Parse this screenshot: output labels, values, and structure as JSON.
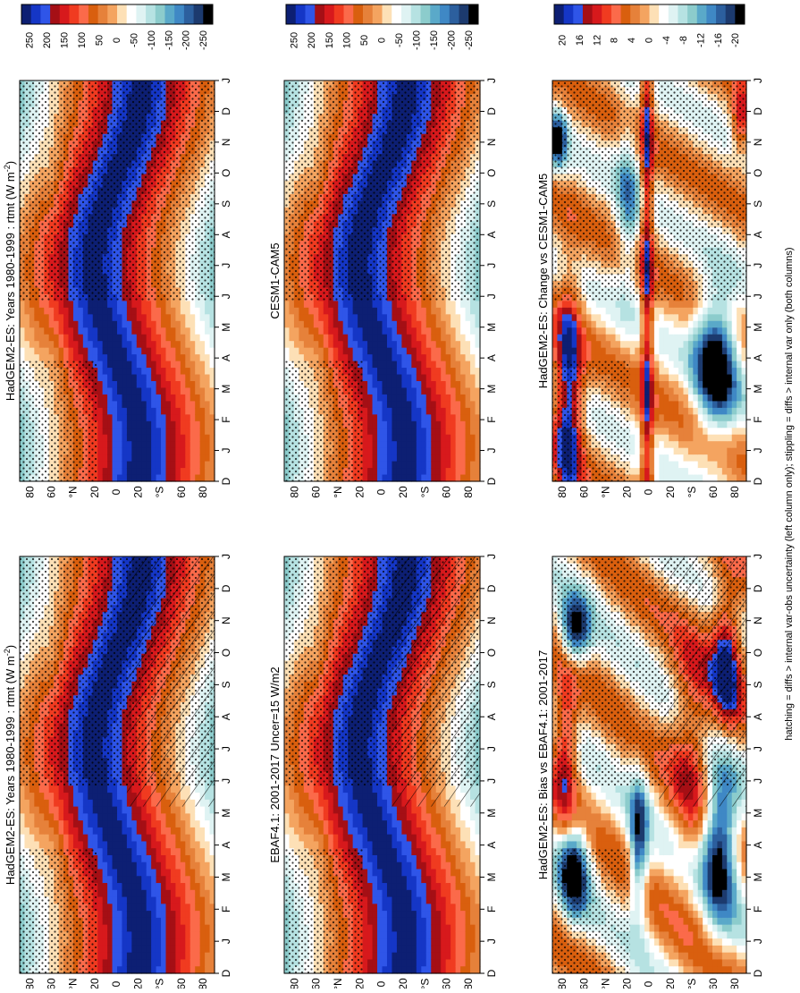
{
  "figure": {
    "footnote": "hatching = diffs > internal var-obs uncertainty (left column only); stippling = diffs > internal var only (both columns)"
  },
  "palettes": {
    "field": [
      "#0d1f73",
      "#1536c6",
      "#2f55e8",
      "#a50f15",
      "#d7191c",
      "#f03b20",
      "#fb6a4a",
      "#d95f0e",
      "#e6813a",
      "#f4a460",
      "#fde0b6",
      "#ffffff",
      "#dff3f3",
      "#b6e2e2",
      "#8ccccc",
      "#5aa9c9",
      "#3f88c5",
      "#2c5f9e",
      "#1c3a6e",
      "#000000"
    ],
    "diff": [
      "#0d1f73",
      "#1536c6",
      "#2f55e8",
      "#a50f15",
      "#d7191c",
      "#f03b20",
      "#fb6a4a",
      "#d95f0e",
      "#e6813a",
      "#f4a460",
      "#fde0b6",
      "#ffffff",
      "#dff3f3",
      "#b6e2e2",
      "#8ccccc",
      "#5aa9c9",
      "#3f88c5",
      "#2c5f9e",
      "#1c3a6e",
      "#000000"
    ]
  },
  "colorbars": {
    "field": [
      "250",
      "200",
      "150",
      "100",
      "50",
      "0",
      "-50",
      "-100",
      "-150",
      "-200",
      "-250"
    ],
    "diff": [
      "20",
      "16",
      "12",
      "8",
      "4",
      "0",
      "-4",
      "-8",
      "-12",
      "-16",
      "-20"
    ]
  },
  "axes": {
    "months": [
      "D",
      "J",
      "F",
      "M",
      "A",
      "M",
      "J",
      "J",
      "A",
      "S",
      "O",
      "N",
      "D",
      "J"
    ],
    "lat_ticks": [
      "80",
      "60",
      "°N",
      "20",
      "0",
      "20",
      "°S",
      "60",
      "80"
    ]
  },
  "chart_data": [
    {
      "type": "heatmap",
      "title": "HadGEM2-ES: Years 1980-1999 : rtmt (W m",
      "title_sup": "-2",
      "title_end": ")",
      "field": "clim",
      "hatch": true,
      "stipple": true,
      "colorbar": "field"
    },
    {
      "type": "heatmap",
      "title": "HadGEM2-ES: Years 1980-1999 : rtmt (W m",
      "title_sup": "-2",
      "title_end": ")",
      "field": "clim",
      "hatch": false,
      "stipple": true,
      "colorbar": "field"
    },
    {
      "type": "heatmap",
      "title": "EBAF4.1: 2001-2017 Uncer=15 W/m2",
      "title_sup": "",
      "title_end": "",
      "field": "clim",
      "hatch": true,
      "stipple": true,
      "colorbar": "field"
    },
    {
      "type": "heatmap",
      "title": "CESM1-CAM5",
      "title_sup": "",
      "title_end": "",
      "field": "clim",
      "hatch": false,
      "stipple": true,
      "colorbar": "field"
    },
    {
      "type": "heatmap",
      "title": "HadGEM2-ES: Bias vs EBAF4.1: 2001-2017",
      "title_sup": "",
      "title_end": "",
      "field": "bias",
      "hatch": true,
      "stipple": true,
      "colorbar": "diff"
    },
    {
      "type": "heatmap",
      "title": "HadGEM2-ES: Change vs CESM1-CAM5",
      "title_sup": "",
      "title_end": "",
      "field": "change",
      "hatch": false,
      "stipple": true,
      "colorbar": "diff"
    }
  ]
}
